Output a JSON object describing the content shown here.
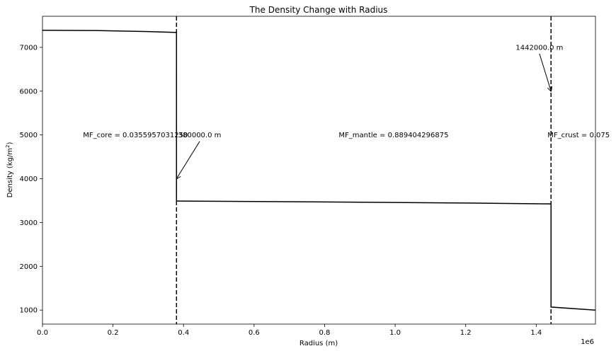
{
  "chart_data": {
    "type": "line",
    "title": "The Density Change with Radius",
    "xlabel": "Radius (m)",
    "ylabel": "Density (kg/m²)",
    "x_offset_label": "1e6",
    "xlim": [
      0,
      1568000
    ],
    "ylim": [
      680,
      7710
    ],
    "x_ticks": [
      {
        "value": 0,
        "label": "0.0"
      },
      {
        "value": 200000,
        "label": "0.2"
      },
      {
        "value": 400000,
        "label": "0.4"
      },
      {
        "value": 600000,
        "label": "0.6"
      },
      {
        "value": 800000,
        "label": "0.8"
      },
      {
        "value": 1000000,
        "label": "1.0"
      },
      {
        "value": 1200000,
        "label": "1.2"
      },
      {
        "value": 1400000,
        "label": "1.4"
      }
    ],
    "y_ticks": [
      {
        "value": 1000,
        "label": "1000"
      },
      {
        "value": 2000,
        "label": "2000"
      },
      {
        "value": 3000,
        "label": "3000"
      },
      {
        "value": 4000,
        "label": "4000"
      },
      {
        "value": 5000,
        "label": "5000"
      },
      {
        "value": 6000,
        "label": "6000"
      },
      {
        "value": 7000,
        "label": "7000"
      }
    ],
    "series": [
      {
        "color": "#000000",
        "points": [
          [
            0,
            7390
          ],
          [
            150000,
            7385
          ],
          [
            300000,
            7360
          ],
          [
            380000,
            7340
          ],
          [
            380000,
            3490
          ],
          [
            800000,
            3470
          ],
          [
            1200000,
            3445
          ],
          [
            1442000,
            3425
          ],
          [
            1442000,
            1070
          ],
          [
            1568000,
            1000
          ]
        ]
      }
    ],
    "vlines": [
      {
        "x": 380000,
        "style": "dashed"
      },
      {
        "x": 1442000,
        "style": "dashed"
      }
    ],
    "annotations": [
      {
        "text": "MF_core = 0.0355957031250",
        "x": 115000,
        "y": 5000,
        "arrow": false
      },
      {
        "text": "380000.0 m",
        "x": 385000,
        "y": 5000,
        "arrow": true,
        "target": [
          380000,
          4000
        ]
      },
      {
        "text": "MF_mantle = 0.889404296875",
        "x": 840000,
        "y": 5000,
        "arrow": false
      },
      {
        "text": "1442000.0 m",
        "x": 1342000,
        "y": 7000,
        "arrow": true,
        "target": [
          1442000,
          6000
        ]
      },
      {
        "text": "MF_crust = 0.075",
        "x": 1432000,
        "y": 5000,
        "arrow": false
      }
    ],
    "grid": false
  }
}
